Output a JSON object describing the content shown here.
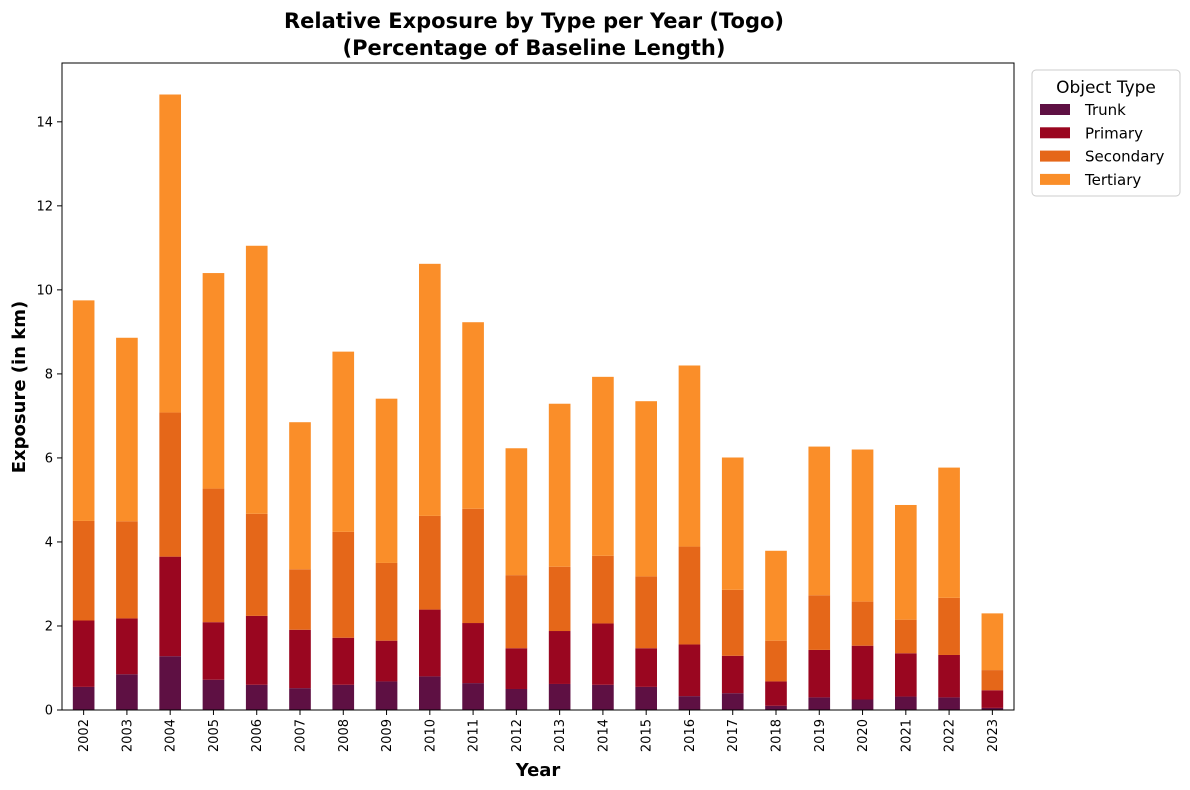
{
  "chart_data": {
    "type": "bar",
    "stacked": true,
    "title": "Relative Exposure by Type per Year (Togo)",
    "subtitle": "(Percentage of Baseline Length)",
    "xlabel": "Year",
    "ylabel": "Exposure (in km)",
    "ylim": [
      0,
      15.4
    ],
    "yticks": [
      0,
      2,
      4,
      6,
      8,
      10,
      12,
      14
    ],
    "grid": false,
    "legend_title": "Object Type",
    "legend_position": "outside-top-right",
    "categories": [
      "2002",
      "2003",
      "2004",
      "2005",
      "2006",
      "2007",
      "2008",
      "2009",
      "2010",
      "2011",
      "2012",
      "2013",
      "2014",
      "2015",
      "2016",
      "2017",
      "2018",
      "2019",
      "2020",
      "2021",
      "2022",
      "2023"
    ],
    "series": [
      {
        "name": "Trunk",
        "color": "#5e1043",
        "values": [
          0.55,
          0.85,
          1.28,
          0.72,
          0.6,
          0.52,
          0.6,
          0.68,
          0.8,
          0.64,
          0.5,
          0.62,
          0.6,
          0.55,
          0.33,
          0.4,
          0.1,
          0.3,
          0.25,
          0.32,
          0.3,
          0.05
        ]
      },
      {
        "name": "Primary",
        "color": "#9a0620",
        "values": [
          1.58,
          1.33,
          2.37,
          1.37,
          1.64,
          1.39,
          1.12,
          0.97,
          1.59,
          1.43,
          0.97,
          1.26,
          1.46,
          0.92,
          1.23,
          0.89,
          0.58,
          1.13,
          1.28,
          1.03,
          1.01,
          0.42
        ]
      },
      {
        "name": "Secondary",
        "color": "#e56719",
        "values": [
          2.37,
          2.31,
          3.43,
          3.18,
          2.43,
          1.44,
          2.52,
          1.85,
          2.23,
          2.72,
          1.74,
          1.53,
          1.61,
          1.71,
          2.33,
          1.57,
          0.97,
          1.3,
          1.05,
          0.8,
          1.36,
          0.48
        ]
      },
      {
        "name": "Tertiary",
        "color": "#fa8e29",
        "values": [
          5.25,
          4.37,
          7.57,
          5.13,
          6.38,
          3.5,
          4.29,
          3.91,
          6.0,
          4.44,
          3.02,
          3.88,
          4.26,
          4.17,
          4.31,
          3.15,
          2.14,
          3.54,
          3.62,
          2.73,
          3.1,
          1.35
        ]
      }
    ]
  }
}
